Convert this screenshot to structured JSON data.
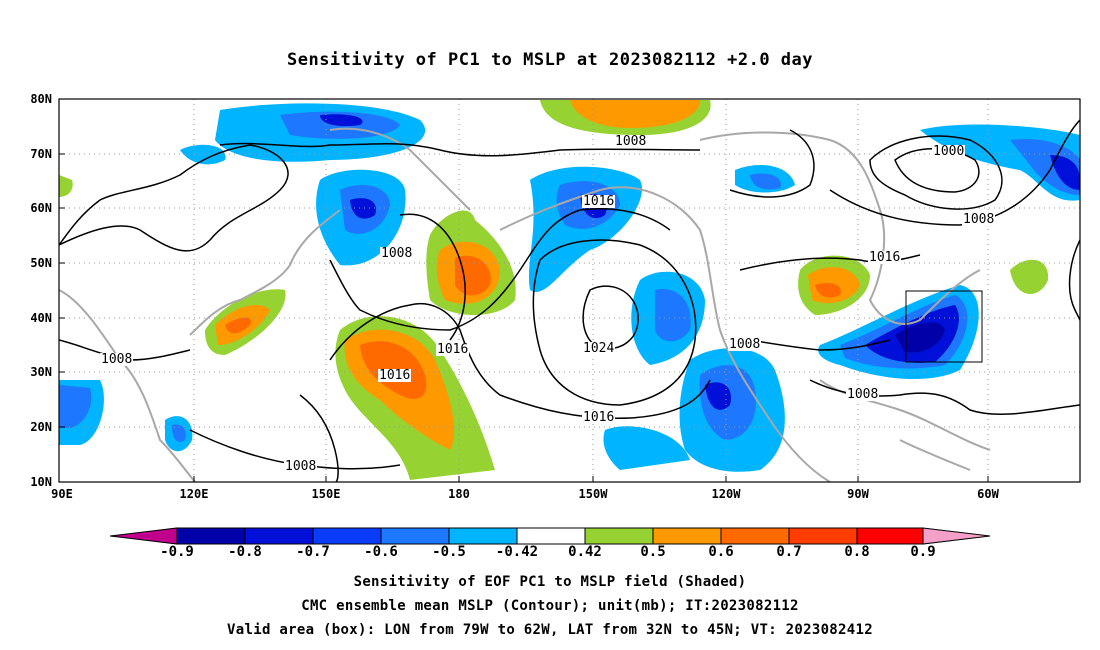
{
  "title": "Sensitivity of PC1 to MSLP at 2023082112 +2.0 day",
  "map": {
    "lat_labels": [
      "80N",
      "70N",
      "60N",
      "50N",
      "40N",
      "30N",
      "20N",
      "10N"
    ],
    "lon_labels": [
      "90E",
      "120E",
      "150E",
      "180",
      "150W",
      "120W",
      "90W",
      "60W"
    ],
    "contour_labels": [
      "1008",
      "1000",
      "1008",
      "1016",
      "1016",
      "1008",
      "1016",
      "1024",
      "1008",
      "1008",
      "1016",
      "1016",
      "1008",
      "1008"
    ],
    "valid_box": {
      "lon_from": "79W",
      "lon_to": "62W",
      "lat_from": "32N",
      "lat_to": "45N"
    }
  },
  "colorbar": {
    "labels": [
      "-0.9",
      "-0.8",
      "-0.7",
      "-0.6",
      "-0.5",
      "-0.42",
      "0.42",
      "0.5",
      "0.6",
      "0.7",
      "0.8",
      "0.9"
    ],
    "colors": [
      "#c0008c",
      "#0000a8",
      "#0010d8",
      "#0a3cff",
      "#1e78ff",
      "#00b4ff",
      "#ffffff",
      "#96d232",
      "#ff9900",
      "#ff6a00",
      "#ff3c00",
      "#ff0000",
      "#f5a0c8"
    ]
  },
  "captions": [
    "Sensitivity of EOF PC1 to MSLP field (Shaded)",
    "CMC ensemble mean MSLP (Contour); unit(mb); IT:2023082112",
    "Valid area (box): LON from 79W to 62W, LAT from 32N to 45N; VT: 2023082412"
  ]
}
